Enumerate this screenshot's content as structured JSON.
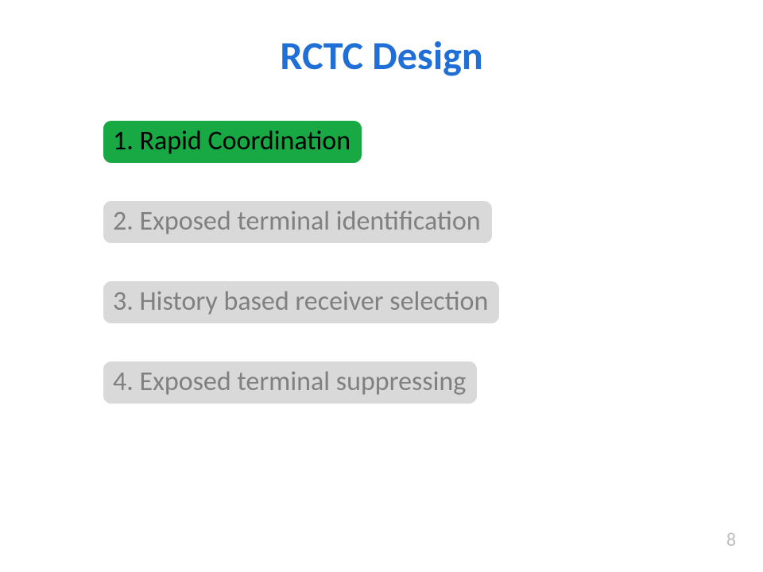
{
  "slide": {
    "title": "RCTC Design",
    "title_color": "#1f6fd6",
    "title_fontsize": 50,
    "title_fontweight": 700,
    "background_color": "#ffffff",
    "page_number": "8",
    "page_number_color": "#bfbfbf",
    "page_number_fontsize": 24
  },
  "items": [
    {
      "label": "1. Rapid Coordination",
      "bg_color": "#18a944",
      "text_color": "#000000",
      "fontsize": 34,
      "border_radius": 10
    },
    {
      "label": "2. Exposed terminal identification",
      "bg_color": "#d9d9d9",
      "text_color": "#808080",
      "fontsize": 34,
      "border_radius": 10
    },
    {
      "label": "3. History based receiver selection",
      "bg_color": "#d9d9d9",
      "text_color": "#808080",
      "fontsize": 34,
      "border_radius": 10
    },
    {
      "label": "4. Exposed terminal suppressing",
      "bg_color": "#d9d9d9",
      "text_color": "#808080",
      "fontsize": 34,
      "border_radius": 10
    }
  ]
}
